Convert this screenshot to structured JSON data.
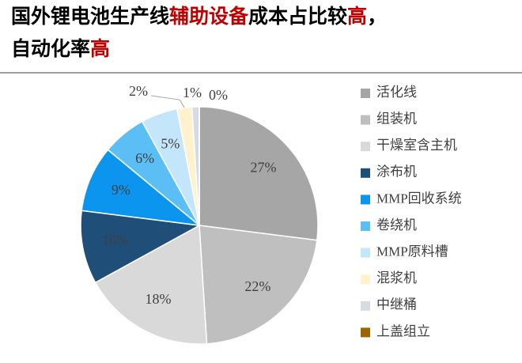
{
  "header": {
    "title_lines": [
      [
        {
          "text": "国外锂电池生产线",
          "color": "#000000"
        },
        {
          "text": "辅助设备",
          "color": "#c00000"
        },
        {
          "text": "成本占比较",
          "color": "#000000"
        },
        {
          "text": "高",
          "color": "#c00000"
        },
        {
          "text": "，",
          "color": "#000000"
        }
      ],
      [
        {
          "text": "自动化率",
          "color": "#000000"
        },
        {
          "text": "高",
          "color": "#c00000"
        }
      ]
    ]
  },
  "chart_data": {
    "type": "pie",
    "categories": [
      "活化线",
      "组装机",
      "干燥室含主机",
      "涂布机",
      "MMP回收系统",
      "卷绕机",
      "MMP原料槽",
      "混浆机",
      "中继桶",
      "上盖组立"
    ],
    "values": [
      27,
      22,
      18,
      10,
      9,
      6,
      5,
      2,
      1,
      0
    ],
    "value_labels": [
      "27%",
      "22%",
      "18%",
      "10%",
      "9%",
      "6%",
      "5%",
      "2%",
      "1%",
      "0%"
    ],
    "colors": [
      "#a6a6a6",
      "#bfbfbf",
      "#d9d9d9",
      "#1f4e79",
      "#0b95ef",
      "#5bbef5",
      "#c4e6fa",
      "#fff2cc",
      "#d6dce4",
      "#9c6500"
    ],
    "legend": "right"
  }
}
